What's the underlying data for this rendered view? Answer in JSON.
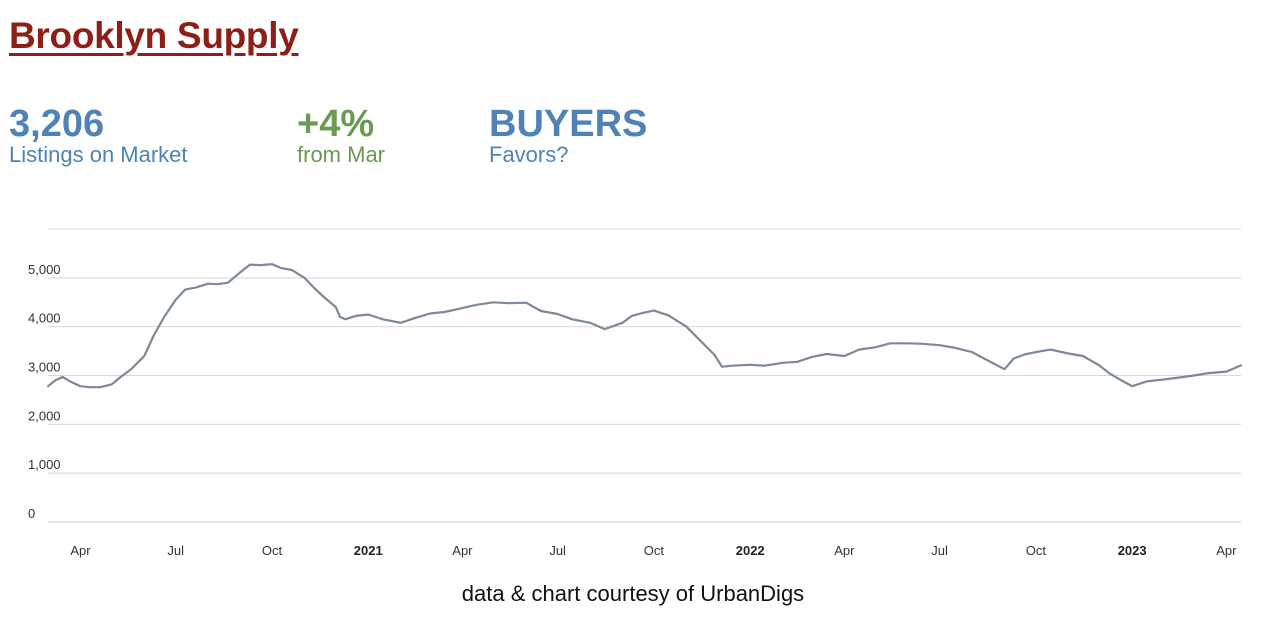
{
  "title": "Brooklyn Supply",
  "colors": {
    "title": "#8e1f16",
    "stat_blue": "#4f83b8",
    "stat_green": "#6a9a52",
    "line": "#7d8899",
    "grid": "#d8d8d8"
  },
  "stats": [
    {
      "value": "3,206",
      "label": "Listings on Market",
      "color": "#4f83b8"
    },
    {
      "value": "+4%",
      "label": "from Mar",
      "color": "#6a9a52"
    },
    {
      "value": "BUYERS",
      "label": "Favors?",
      "color": "#4f83b8"
    }
  ],
  "credit": "data & chart courtesy of UrbanDigs",
  "chart_data": {
    "type": "line",
    "title": "",
    "xlabel": "",
    "ylabel": "",
    "ylim": [
      0,
      6000
    ],
    "xlim": [
      "2020-03-01",
      "2023-04-15"
    ],
    "y_ticks": [
      0,
      1000,
      2000,
      3000,
      4000,
      5000
    ],
    "y_tick_labels": [
      "0",
      "1,000",
      "2,000",
      "3,000",
      "4,000",
      "5,000"
    ],
    "x_ticks": [
      {
        "label": "Apr",
        "date": "2020-04-01",
        "year": false
      },
      {
        "label": "Jul",
        "date": "2020-07-01",
        "year": false
      },
      {
        "label": "Oct",
        "date": "2020-10-01",
        "year": false
      },
      {
        "label": "2021",
        "date": "2021-01-01",
        "year": true
      },
      {
        "label": "Apr",
        "date": "2021-04-01",
        "year": false
      },
      {
        "label": "Jul",
        "date": "2021-07-01",
        "year": false
      },
      {
        "label": "Oct",
        "date": "2021-10-01",
        "year": false
      },
      {
        "label": "2022",
        "date": "2022-01-01",
        "year": true
      },
      {
        "label": "Apr",
        "date": "2022-04-01",
        "year": false
      },
      {
        "label": "Jul",
        "date": "2022-07-01",
        "year": false
      },
      {
        "label": "Oct",
        "date": "2022-10-01",
        "year": false
      },
      {
        "label": "2023",
        "date": "2023-01-01",
        "year": true
      },
      {
        "label": "Apr",
        "date": "2023-04-01",
        "year": false
      }
    ],
    "grid": true,
    "legend": "none",
    "series": [
      {
        "x": [
          "2020-03-01",
          "2020-03-08",
          "2020-03-15",
          "2020-03-22",
          "2020-04-01",
          "2020-04-10",
          "2020-04-20",
          "2020-05-01",
          "2020-05-10",
          "2020-05-20",
          "2020-06-01",
          "2020-06-10",
          "2020-06-20",
          "2020-07-01",
          "2020-07-10",
          "2020-07-20",
          "2020-08-01",
          "2020-08-10",
          "2020-08-20",
          "2020-09-01",
          "2020-09-10",
          "2020-09-20",
          "2020-10-01",
          "2020-10-10",
          "2020-10-20",
          "2020-11-01",
          "2020-11-10",
          "2020-11-20",
          "2020-12-01",
          "2020-12-05",
          "2020-12-10",
          "2020-12-20",
          "2021-01-01",
          "2021-01-15",
          "2021-02-01",
          "2021-02-15",
          "2021-03-01",
          "2021-03-15",
          "2021-04-01",
          "2021-04-15",
          "2021-05-01",
          "2021-05-15",
          "2021-06-01",
          "2021-06-15",
          "2021-07-01",
          "2021-07-15",
          "2021-08-01",
          "2021-08-15",
          "2021-09-01",
          "2021-09-10",
          "2021-09-20",
          "2021-10-01",
          "2021-10-15",
          "2021-11-01",
          "2021-11-15",
          "2021-11-28",
          "2021-12-05",
          "2021-12-15",
          "2022-01-01",
          "2022-01-15",
          "2022-02-01",
          "2022-02-15",
          "2022-03-01",
          "2022-03-15",
          "2022-04-01",
          "2022-04-15",
          "2022-05-01",
          "2022-05-15",
          "2022-06-01",
          "2022-06-15",
          "2022-07-01",
          "2022-07-15",
          "2022-08-01",
          "2022-08-15",
          "2022-09-01",
          "2022-09-10",
          "2022-09-20",
          "2022-10-01",
          "2022-10-15",
          "2022-11-01",
          "2022-11-15",
          "2022-12-01",
          "2022-12-10",
          "2022-12-20",
          "2023-01-01",
          "2023-01-15",
          "2023-02-01",
          "2023-02-15",
          "2023-03-01",
          "2023-03-15",
          "2023-04-01",
          "2023-04-15"
        ],
        "y": [
          2780,
          2900,
          2970,
          2880,
          2780,
          2760,
          2760,
          2820,
          2980,
          3140,
          3400,
          3820,
          4200,
          4550,
          4760,
          4800,
          4880,
          4870,
          4900,
          5120,
          5270,
          5260,
          5280,
          5200,
          5160,
          5000,
          4800,
          4600,
          4400,
          4200,
          4150,
          4220,
          4250,
          4150,
          4080,
          4180,
          4270,
          4300,
          4380,
          4450,
          4500,
          4480,
          4490,
          4320,
          4260,
          4150,
          4080,
          3950,
          4080,
          4220,
          4280,
          4330,
          4230,
          4000,
          3700,
          3420,
          3180,
          3200,
          3220,
          3200,
          3260,
          3280,
          3380,
          3440,
          3400,
          3530,
          3580,
          3660,
          3660,
          3650,
          3620,
          3570,
          3480,
          3320,
          3130,
          3350,
          3430,
          3480,
          3530,
          3450,
          3400,
          3200,
          3050,
          2920,
          2780,
          2880,
          2920,
          2960,
          3000,
          3050,
          3080,
          3206
        ]
      }
    ]
  }
}
